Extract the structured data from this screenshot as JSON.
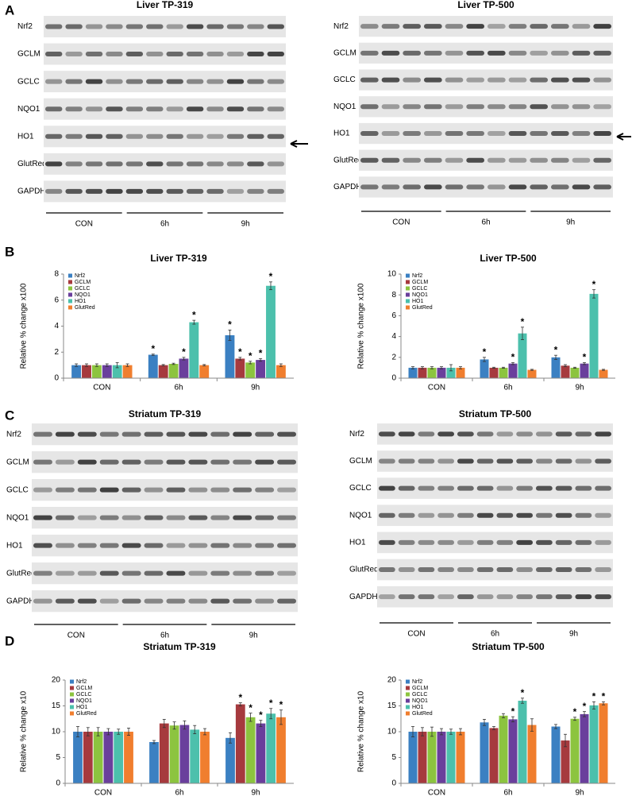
{
  "panel_labels": [
    "A",
    "B",
    "C",
    "D"
  ],
  "blots": [
    {
      "title": "Liver TP-319",
      "rows": [
        "Nrf2",
        "GCLM",
        "GCLC",
        "NQO1",
        "HO1",
        "GlutRed",
        "GAPDH"
      ],
      "groups": [
        "CON",
        "6h",
        "9h"
      ]
    },
    {
      "title": "Liver TP-500",
      "rows": [
        "Nrf2",
        "GCLM",
        "GCLC",
        "NQO1",
        "HO1",
        "GlutRed",
        "GAPDH"
      ],
      "groups": [
        "CON",
        "6h",
        "9h"
      ]
    },
    {
      "title": "Striatum TP-319",
      "rows": [
        "Nrf2",
        "GCLM",
        "GCLC",
        "NQO1",
        "HO1",
        "GlutRed",
        "GAPDH"
      ],
      "groups": [
        "CON",
        "6h",
        "9h"
      ]
    },
    {
      "title": "Striatum TP-500",
      "rows": [
        "Nrf2",
        "GCLM",
        "GCLC",
        "NQO1",
        "HO1",
        "GlutRed",
        "GAPDH"
      ],
      "groups": [
        "CON",
        "6h",
        "9h"
      ]
    }
  ],
  "chart_data": [
    {
      "type": "bar",
      "title": "Liver TP-319",
      "y_label": "Relative % change x100",
      "categories": [
        "CON",
        "6h",
        "9h"
      ],
      "ylim": [
        0,
        8
      ],
      "yticks": [
        0,
        2,
        4,
        6,
        8
      ],
      "legend": "top-left",
      "series": [
        {
          "name": "Nrf2",
          "color": "#3b80c2",
          "values": [
            1.0,
            1.8,
            3.3
          ],
          "errors": [
            0.1,
            0.05,
            0.4
          ],
          "significance": [
            null,
            "*",
            "*"
          ]
        },
        {
          "name": "GCLM",
          "color": "#a63a3e",
          "values": [
            1.0,
            1.0,
            1.5
          ],
          "errors": [
            0.1,
            0.05,
            0.1
          ],
          "significance": [
            null,
            null,
            "*"
          ]
        },
        {
          "name": "GCLC",
          "color": "#8cc43f",
          "values": [
            1.0,
            1.1,
            1.2
          ],
          "errors": [
            0.1,
            0.05,
            0.1
          ],
          "significance": [
            null,
            null,
            "*"
          ]
        },
        {
          "name": "NQO1",
          "color": "#6a3f9c",
          "values": [
            1.0,
            1.5,
            1.4
          ],
          "errors": [
            0.1,
            0.1,
            0.1
          ],
          "significance": [
            null,
            "*",
            "*"
          ]
        },
        {
          "name": "HO1",
          "color": "#4cc0ac",
          "values": [
            1.0,
            4.3,
            7.1
          ],
          "errors": [
            0.2,
            0.15,
            0.3
          ],
          "significance": [
            null,
            "*",
            "*"
          ]
        },
        {
          "name": "GlutRed",
          "color": "#f07e2e",
          "values": [
            1.0,
            1.0,
            1.0
          ],
          "errors": [
            0.1,
            0.05,
            0.1
          ],
          "significance": [
            null,
            null,
            null
          ]
        }
      ]
    },
    {
      "type": "bar",
      "title": "Liver TP-500",
      "y_label": "Relative % change x100",
      "categories": [
        "CON",
        "6h",
        "9h"
      ],
      "ylim": [
        0,
        10
      ],
      "yticks": [
        0,
        2,
        4,
        6,
        8,
        10
      ],
      "legend": "top-left",
      "series": [
        {
          "name": "Nrf2",
          "color": "#3b80c2",
          "values": [
            1.0,
            1.8,
            2.0
          ],
          "errors": [
            0.1,
            0.2,
            0.2
          ],
          "significance": [
            null,
            "*",
            "*"
          ]
        },
        {
          "name": "GCLM",
          "color": "#a63a3e",
          "values": [
            1.0,
            1.0,
            1.2
          ],
          "errors": [
            0.1,
            0.05,
            0.1
          ],
          "significance": [
            null,
            null,
            null
          ]
        },
        {
          "name": "GCLC",
          "color": "#8cc43f",
          "values": [
            1.0,
            1.0,
            1.0
          ],
          "errors": [
            0.1,
            0.05,
            0.05
          ],
          "significance": [
            null,
            null,
            null
          ]
        },
        {
          "name": "NQO1",
          "color": "#6a3f9c",
          "values": [
            1.0,
            1.4,
            1.4
          ],
          "errors": [
            0.1,
            0.1,
            0.1
          ],
          "significance": [
            null,
            "*",
            "*"
          ]
        },
        {
          "name": "HO1",
          "color": "#4cc0ac",
          "values": [
            1.0,
            4.3,
            8.1
          ],
          "errors": [
            0.3,
            0.6,
            0.4
          ],
          "significance": [
            null,
            "*",
            "*"
          ]
        },
        {
          "name": "GlutRed",
          "color": "#f07e2e",
          "values": [
            1.0,
            0.8,
            0.8
          ],
          "errors": [
            0.1,
            0.05,
            0.05
          ],
          "significance": [
            null,
            null,
            null
          ]
        }
      ]
    },
    {
      "type": "bar",
      "title": "Striatum TP-319",
      "y_label": "Relative % change x10",
      "categories": [
        "CON",
        "6h",
        "9h"
      ],
      "ylim": [
        0,
        20
      ],
      "yticks": [
        0,
        5,
        10,
        15,
        20
      ],
      "legend": "top-left",
      "series": [
        {
          "name": "Nrf2",
          "color": "#3b80c2",
          "values": [
            10,
            8.0,
            8.8
          ],
          "errors": [
            1.0,
            0.3,
            1.0
          ],
          "significance": [
            null,
            null,
            null
          ]
        },
        {
          "name": "GCLM",
          "color": "#a63a3e",
          "values": [
            10,
            11.6,
            15.3
          ],
          "errors": [
            0.8,
            0.8,
            0.3
          ],
          "significance": [
            null,
            null,
            "*"
          ]
        },
        {
          "name": "GCLC",
          "color": "#8cc43f",
          "values": [
            10,
            11.2,
            12.8
          ],
          "errors": [
            0.8,
            0.7,
            0.8
          ],
          "significance": [
            null,
            null,
            "*"
          ]
        },
        {
          "name": "NQO1",
          "color": "#6a3f9c",
          "values": [
            10,
            11.3,
            11.6
          ],
          "errors": [
            0.6,
            0.8,
            0.6
          ],
          "significance": [
            null,
            null,
            "*"
          ]
        },
        {
          "name": "HO1",
          "color": "#4cc0ac",
          "values": [
            10,
            10.4,
            13.5
          ],
          "errors": [
            0.5,
            0.8,
            1.0
          ],
          "significance": [
            null,
            null,
            "*"
          ]
        },
        {
          "name": "GlutRed",
          "color": "#f07e2e",
          "values": [
            10,
            10.0,
            12.8
          ],
          "errors": [
            0.7,
            0.6,
            1.4
          ],
          "significance": [
            null,
            null,
            "*"
          ]
        }
      ]
    },
    {
      "type": "bar",
      "title": "Striatum TP-500",
      "y_label": "Relative % change x10",
      "categories": [
        "CON",
        "6h",
        "9h"
      ],
      "ylim": [
        0,
        20
      ],
      "yticks": [
        0,
        5,
        10,
        15,
        20
      ],
      "legend": "top-left",
      "series": [
        {
          "name": "Nrf2",
          "color": "#3b80c2",
          "values": [
            10,
            11.8,
            11.0
          ],
          "errors": [
            1.0,
            0.6,
            0.4
          ],
          "significance": [
            null,
            null,
            null
          ]
        },
        {
          "name": "GCLM",
          "color": "#a63a3e",
          "values": [
            10,
            10.7,
            8.3
          ],
          "errors": [
            0.8,
            0.3,
            1.2
          ],
          "significance": [
            null,
            null,
            null
          ]
        },
        {
          "name": "GCLC",
          "color": "#8cc43f",
          "values": [
            10,
            13.1,
            12.5
          ],
          "errors": [
            0.9,
            0.4,
            0.3
          ],
          "significance": [
            null,
            null,
            "*"
          ]
        },
        {
          "name": "NQO1",
          "color": "#6a3f9c",
          "values": [
            10,
            12.4,
            13.4
          ],
          "errors": [
            0.6,
            0.5,
            0.5
          ],
          "significance": [
            null,
            "*",
            "*"
          ]
        },
        {
          "name": "HO1",
          "color": "#4cc0ac",
          "values": [
            10,
            16.0,
            15.1
          ],
          "errors": [
            0.5,
            0.5,
            0.7
          ],
          "significance": [
            null,
            "*",
            "*"
          ]
        },
        {
          "name": "GlutRed",
          "color": "#f07e2e",
          "values": [
            10,
            11.3,
            15.5
          ],
          "errors": [
            0.6,
            1.2,
            0.3
          ],
          "significance": [
            null,
            null,
            "*"
          ]
        }
      ]
    }
  ]
}
